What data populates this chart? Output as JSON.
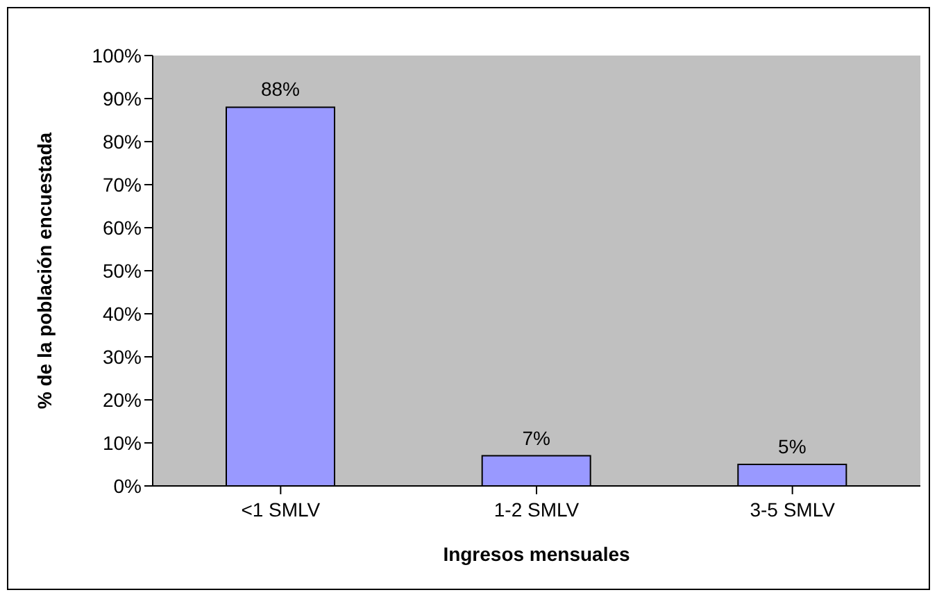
{
  "chart_data": {
    "type": "bar",
    "xlabel": "Ingresos mensuales",
    "ylabel": "% de la población encuestada",
    "categories": [
      "<1 SMLV",
      "1-2 SMLV",
      "3-5 SMLV"
    ],
    "values": [
      88,
      7,
      5
    ],
    "color": "#9999ff",
    "value_labels": [
      "88%",
      "7%",
      "5%"
    ],
    "ylim": [
      0,
      100
    ],
    "yticks": [
      {
        "value": 0,
        "label": "0%"
      },
      {
        "value": 10,
        "label": "10%"
      },
      {
        "value": 20,
        "label": "20%"
      },
      {
        "value": 30,
        "label": "30%"
      },
      {
        "value": 40,
        "label": "40%"
      },
      {
        "value": 50,
        "label": "50%"
      },
      {
        "value": 60,
        "label": "60%"
      },
      {
        "value": 70,
        "label": "70%"
      },
      {
        "value": 80,
        "label": "80%"
      },
      {
        "value": 90,
        "label": "90%"
      },
      {
        "value": 100,
        "label": "100%"
      }
    ],
    "grid": false,
    "legend": false
  }
}
